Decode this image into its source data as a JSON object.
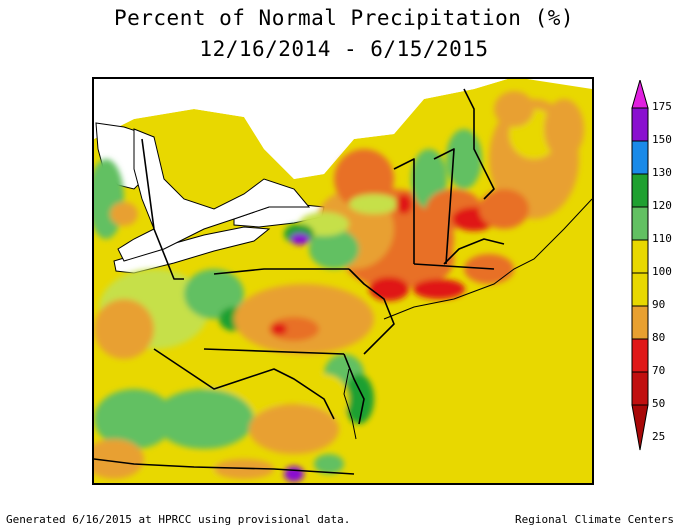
{
  "title": "Percent of Normal Precipitation (%)",
  "subtitle": "12/16/2014 - 6/15/2015",
  "footer_left": "Generated 6/16/2015 at HPRCC using provisional data.",
  "footer_right": "Regional Climate Centers",
  "legend": {
    "bins": [
      {
        "label": "175",
        "color": "#e020e0"
      },
      {
        "label": "150",
        "color": "#8a10d0"
      },
      {
        "label": "130",
        "color": "#1a8ae8"
      },
      {
        "label": "120",
        "color": "#1fa030"
      },
      {
        "label": "110",
        "color": "#62c062"
      },
      {
        "label": "100",
        "color": "#c6e04a"
      },
      {
        "label": "90",
        "color": "#e8d800"
      },
      {
        "label": "80",
        "color": "#e8a030"
      },
      {
        "label": "70",
        "color": "#e87028"
      },
      {
        "label": "50",
        "color": "#e01818"
      },
      {
        "label": "25",
        "color": "#a80808"
      }
    ]
  },
  "map_colors": {
    "water": "#ffffff",
    "lake": "#ffffff",
    "border": "#000000"
  }
}
